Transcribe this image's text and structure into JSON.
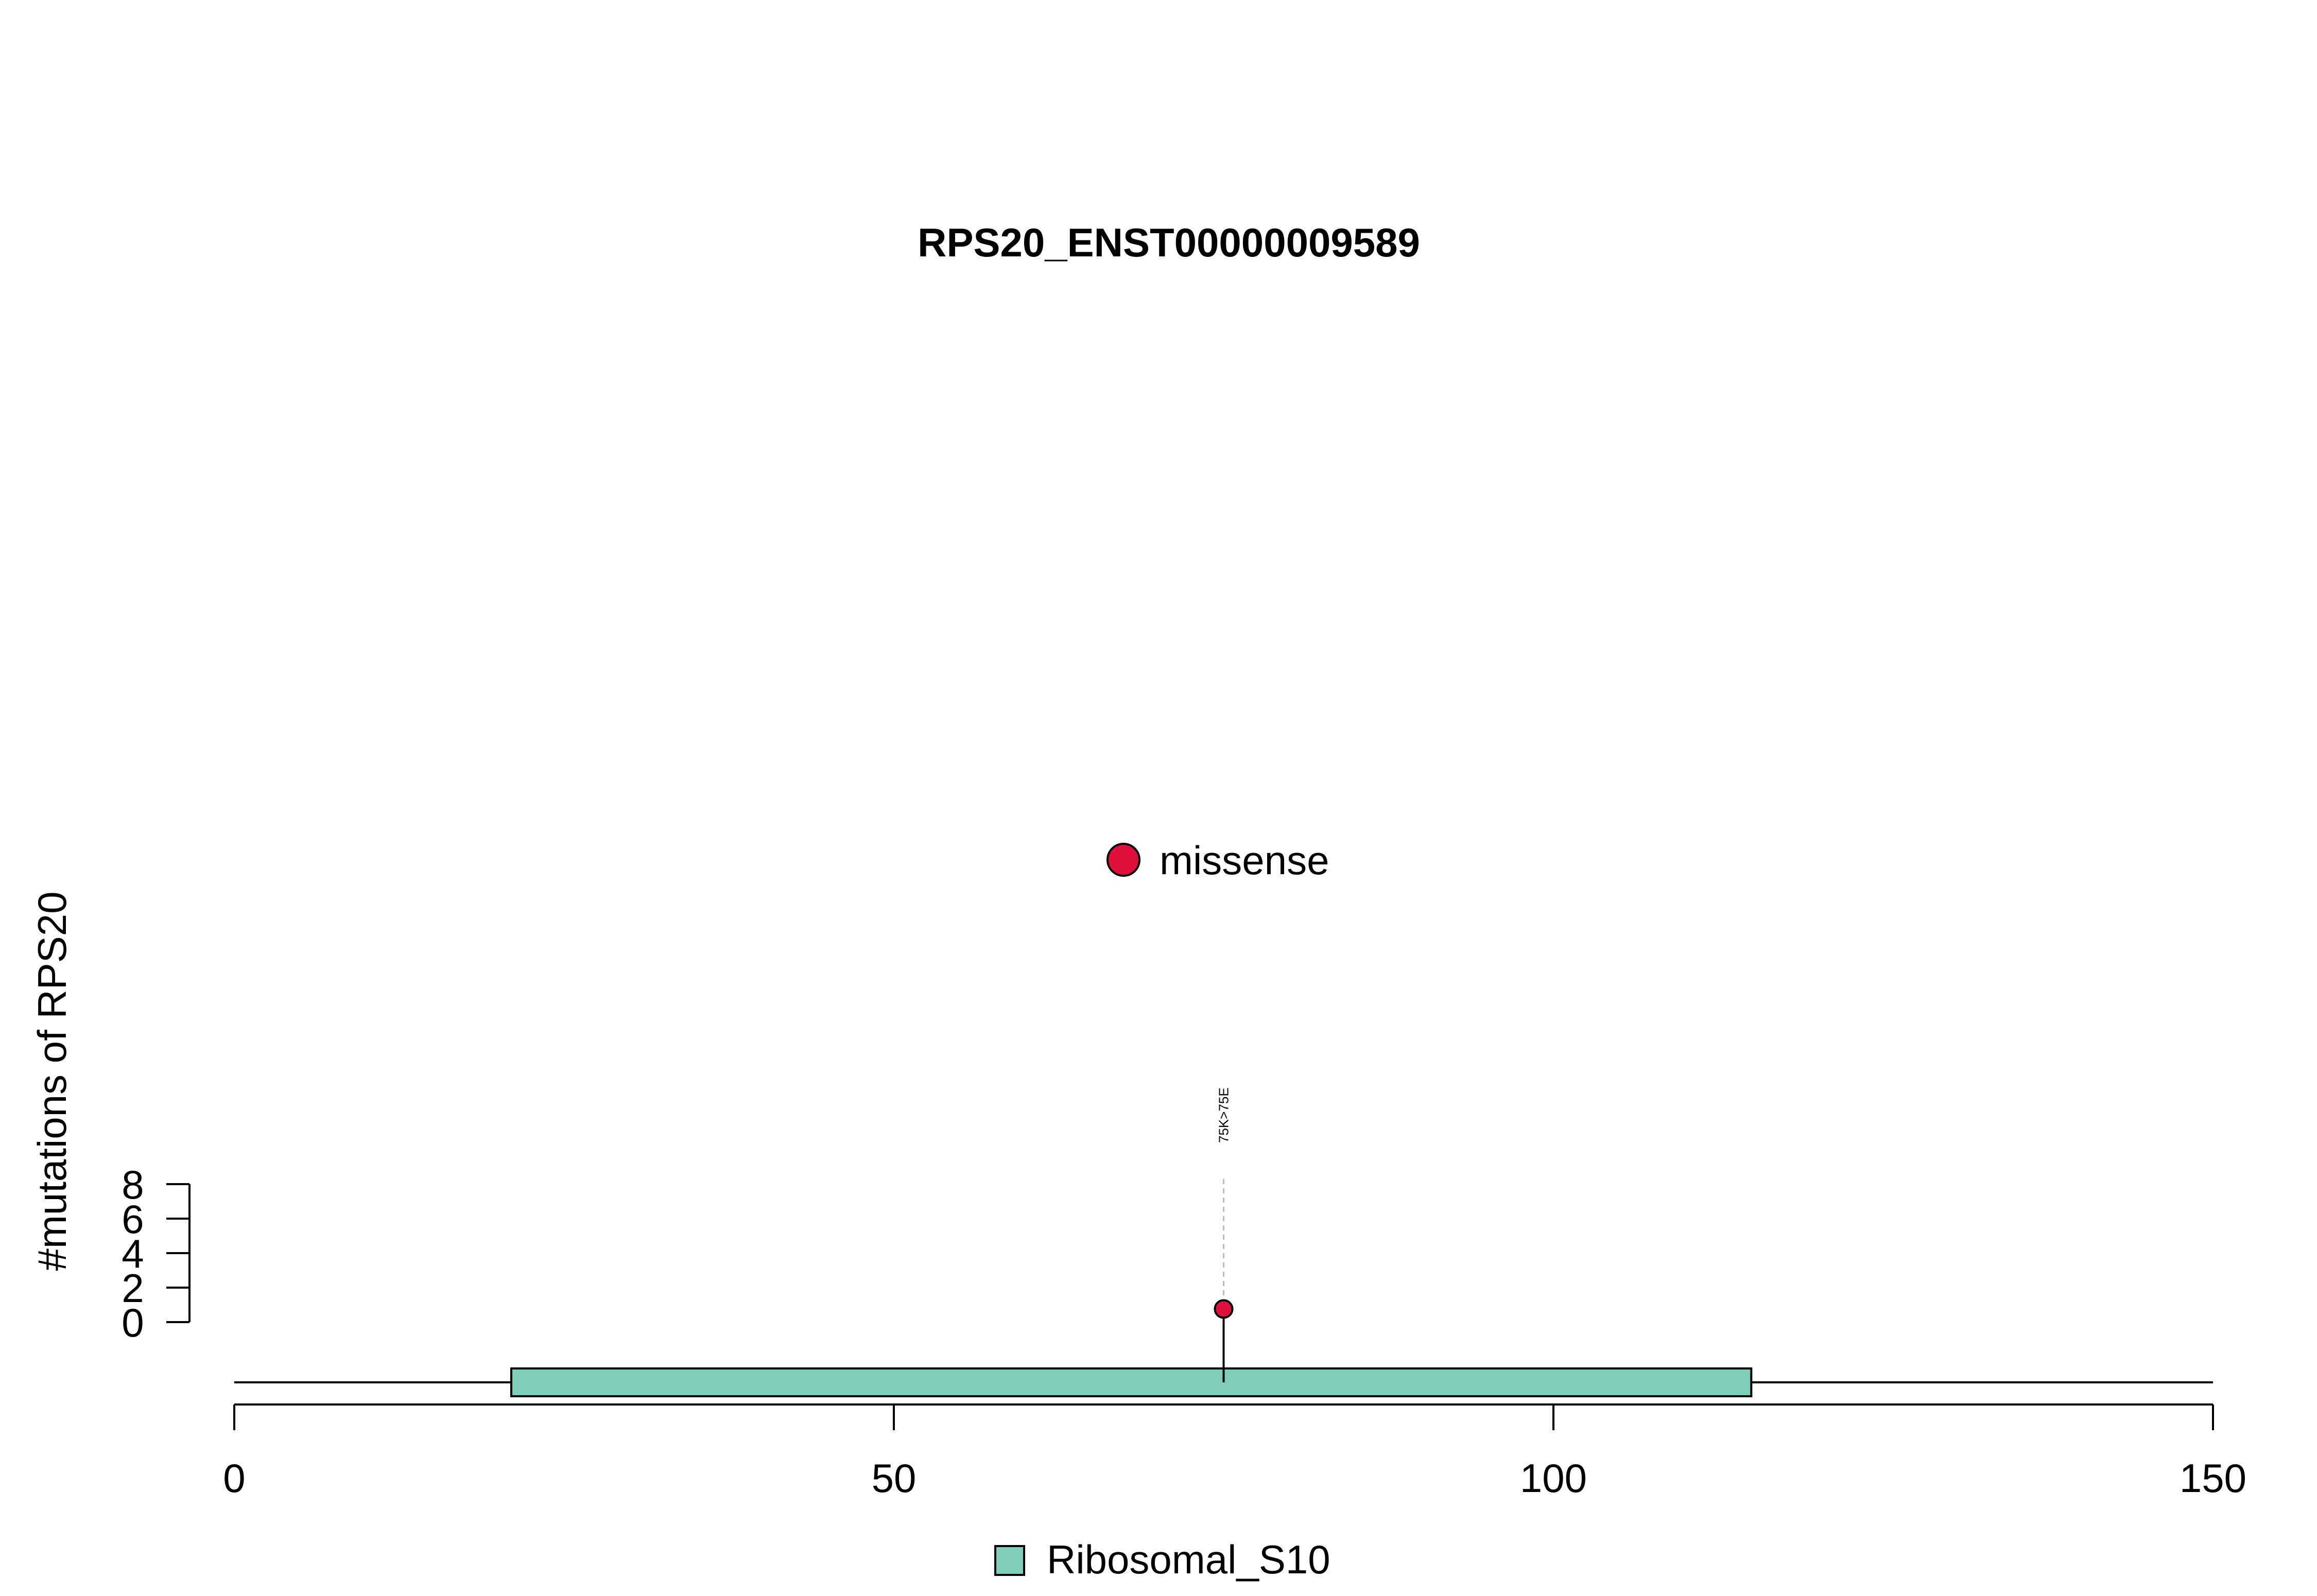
{
  "chart_data": {
    "type": "lollipop",
    "title": "RPS20_ENST00000009589",
    "xlabel": "",
    "ylabel": "#mutations of RPS20",
    "xlim": [
      0,
      150
    ],
    "x_ticks": [
      "0",
      "50",
      "100",
      "150"
    ],
    "ylim": [
      0,
      8
    ],
    "y_ticks": [
      "0",
      "2",
      "4",
      "6",
      "8"
    ],
    "protein_length": 150,
    "domains": [
      {
        "name": "Ribosomal_S10",
        "start": 21,
        "end": 115,
        "color": "#7FCDBB"
      }
    ],
    "mutation_types": [
      {
        "name": "missense",
        "color": "#E0103C"
      }
    ],
    "mutations": [
      {
        "position": 75,
        "count": 1,
        "type": "missense",
        "label": "75K>75E"
      }
    ],
    "legend_position": "top-center",
    "domain_legend_position": "bottom-center",
    "grid": false
  }
}
